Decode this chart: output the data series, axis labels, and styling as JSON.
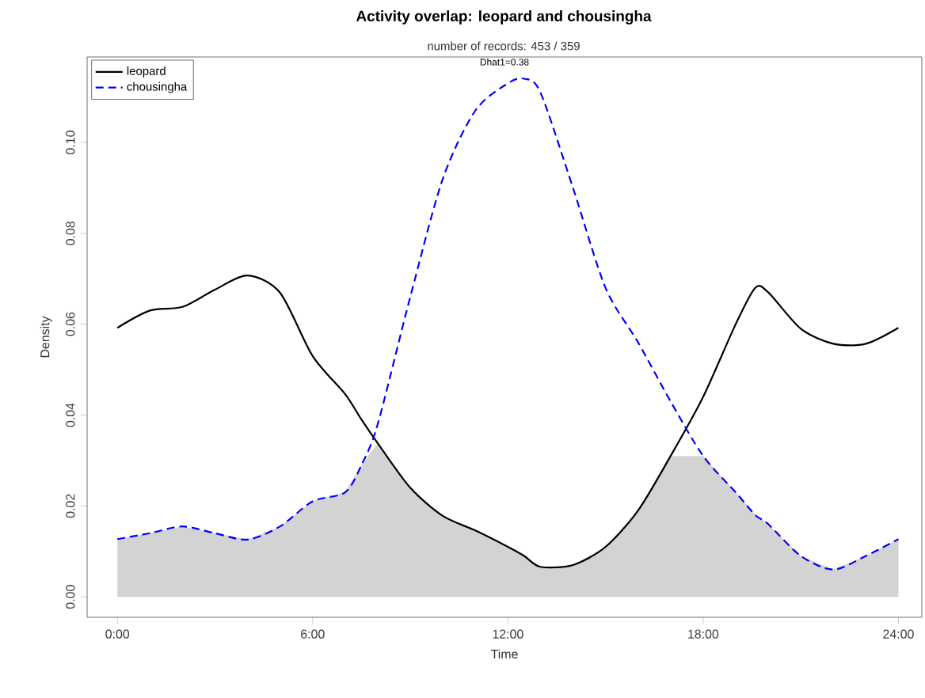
{
  "chart_data": {
    "type": "line",
    "title": "Activity overlap:  leopard and chousingha",
    "subtitle": "number of records: 453 / 359",
    "xlabel": "Time",
    "ylabel": "Density",
    "annotations": [
      "Dhat1=0.38"
    ],
    "x": [
      0,
      1,
      2,
      3,
      4,
      5,
      6,
      7,
      7.5,
      8,
      9,
      10,
      11,
      12,
      12.5,
      13,
      14,
      15,
      16,
      17,
      18,
      19,
      19.6,
      20,
      21,
      22,
      23,
      24
    ],
    "series": [
      {
        "type": "area",
        "color": "#d3d3d3",
        "values": [
          0.0127,
          0.014,
          0.0155,
          0.014,
          0.0126,
          0.0155,
          0.021,
          0.023,
          0.029,
          0.0338,
          0.024,
          0.0178,
          0.0146,
          0.011,
          0.009,
          0.0066,
          0.007,
          0.011,
          0.019,
          0.031,
          0.031,
          0.023,
          0.018,
          0.016,
          0.009,
          0.006,
          0.009,
          0.0127
        ]
      },
      {
        "name": "leopard",
        "color": "#000000",
        "line_style": "solid",
        "values": [
          0.0592,
          0.063,
          0.0638,
          0.0676,
          0.0707,
          0.0669,
          0.053,
          0.0446,
          0.039,
          0.0338,
          0.024,
          0.0178,
          0.0146,
          0.011,
          0.009,
          0.0066,
          0.007,
          0.011,
          0.019,
          0.031,
          0.044,
          0.06,
          0.068,
          0.067,
          0.059,
          0.0557,
          0.0557,
          0.0592
        ]
      },
      {
        "name": "chousingha",
        "color": "#0000ff",
        "line_style": "dashed",
        "values": [
          0.0127,
          0.014,
          0.0155,
          0.014,
          0.0126,
          0.0155,
          0.021,
          0.023,
          0.029,
          0.038,
          0.066,
          0.092,
          0.107,
          0.113,
          0.114,
          0.111,
          0.09,
          0.068,
          0.056,
          0.043,
          0.031,
          0.023,
          0.018,
          0.016,
          0.009,
          0.006,
          0.009,
          0.0127
        ]
      }
    ],
    "xlim": [
      -0.93,
      24.72
    ],
    "ylim": [
      -0.0045,
      0.1188
    ],
    "xticks": [
      {
        "value": 0,
        "label": "0:00"
      },
      {
        "value": 6,
        "label": "6:00"
      },
      {
        "value": 12,
        "label": "12:00"
      },
      {
        "value": 18,
        "label": "18:00"
      },
      {
        "value": 24,
        "label": "24:00"
      }
    ],
    "yticks": [
      {
        "value": 0,
        "label": "0.00"
      },
      {
        "value": 0.02,
        "label": "0.02"
      },
      {
        "value": 0.04,
        "label": "0.04"
      },
      {
        "value": 0.06,
        "label": "0.06"
      },
      {
        "value": 0.08,
        "label": "0.08"
      },
      {
        "value": 0.1,
        "label": "0.10"
      }
    ],
    "legend": "top left",
    "grid": false
  }
}
